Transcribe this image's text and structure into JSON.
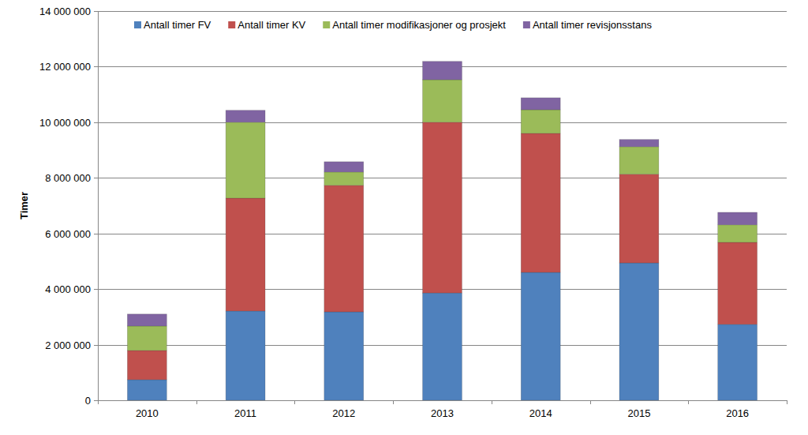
{
  "chart_data": {
    "type": "bar",
    "stacked": true,
    "grid": true,
    "legend": "top",
    "y_label": "Timer",
    "categories": [
      "2010",
      "2011",
      "2012",
      "2013",
      "2014",
      "2015",
      "2016"
    ],
    "series": [
      {
        "name": "Antall timer FV",
        "color": "#4f81bd",
        "values": [
          740000,
          3210000,
          3180000,
          3860000,
          4600000,
          4940000,
          2730000
        ]
      },
      {
        "name": "Antall timer KV",
        "color": "#c0504d",
        "values": [
          1050000,
          4060000,
          4550000,
          6140000,
          5000000,
          3190000,
          2950000
        ]
      },
      {
        "name": "Antall timer modifikasjoner og prosjekt",
        "color": "#9bbb59",
        "values": [
          880000,
          2730000,
          480000,
          1530000,
          850000,
          990000,
          630000
        ]
      },
      {
        "name": "Antall timer revisjonsstans",
        "color": "#8064a2",
        "values": [
          430000,
          430000,
          370000,
          660000,
          430000,
          260000,
          450000
        ]
      }
    ],
    "ylim": [
      0,
      14000000
    ],
    "yticks": [
      0,
      {
        "value": 2000000,
        "label": "2 000 000"
      },
      {
        "value": 4000000,
        "label": "4 000 000"
      },
      {
        "value": 6000000,
        "label": "6 000 000"
      },
      {
        "value": 8000000,
        "label": "8 000 000"
      },
      {
        "value": 10000000,
        "label": "10 000 000"
      },
      {
        "value": 12000000,
        "label": "12 000 000"
      },
      {
        "value": 14000000,
        "label": "14 000 000"
      }
    ]
  }
}
